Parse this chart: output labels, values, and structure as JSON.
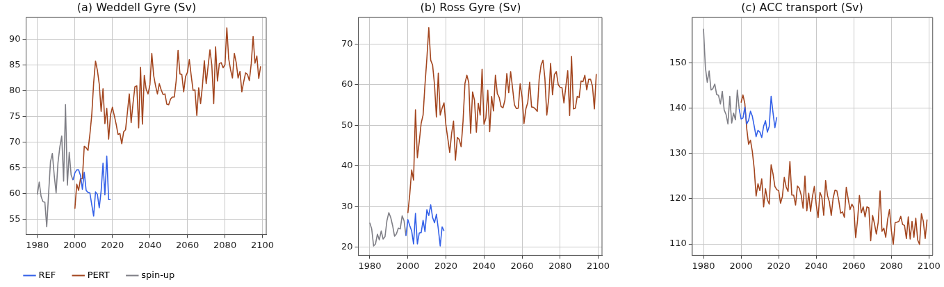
{
  "chart_data": [
    {
      "type": "line",
      "title": "(a) Weddell Gyre (Sv)",
      "xlim": [
        1974,
        2102
      ],
      "xticks": [
        1980,
        2000,
        2020,
        2040,
        2060,
        2080,
        2100
      ],
      "ylim": [
        52,
        94.3
      ],
      "yticks": [
        55,
        60,
        65,
        70,
        75,
        80,
        85,
        90
      ],
      "grid": true,
      "legend": "bottom left",
      "marker": "none",
      "line_style": "solid",
      "series": [
        {
          "name": "REF",
          "color": "#3461e8",
          "x": [
            1999,
            2000,
            2001,
            2002,
            2003,
            2004,
            2005,
            2006,
            2007,
            2008,
            2009,
            2010,
            2011,
            2012,
            2013,
            2014,
            2015,
            2016,
            2017,
            2018,
            2019
          ],
          "values": [
            62.6,
            64,
            64.6,
            64.6,
            63.5,
            60.8,
            64.1,
            60.6,
            60.2,
            60.1,
            57.8,
            55.6,
            60.3,
            59.8,
            57.2,
            60.5,
            65.9,
            59.7,
            67.3,
            58.8,
            58.8
          ]
        },
        {
          "name": "PERT",
          "color": "#a3461f",
          "x": [
            2000,
            2001,
            2002,
            2003,
            2004,
            2005,
            2006,
            2007,
            2008,
            2009,
            2010,
            2011,
            2012,
            2013,
            2014,
            2015,
            2016,
            2017,
            2018,
            2019,
            2020,
            2021,
            2022,
            2023,
            2024,
            2025,
            2026,
            2027,
            2028,
            2029,
            2030,
            2031,
            2032,
            2033,
            2034,
            2035,
            2036,
            2037,
            2038,
            2039,
            2040,
            2041,
            2042,
            2043,
            2044,
            2045,
            2046,
            2047,
            2048,
            2049,
            2050,
            2051,
            2052,
            2053,
            2054,
            2055,
            2056,
            2057,
            2058,
            2059,
            2060,
            2061,
            2062,
            2063,
            2064,
            2065,
            2066,
            2067,
            2068,
            2069,
            2070,
            2071,
            2072,
            2073,
            2074,
            2075,
            2076,
            2077,
            2078,
            2079,
            2080,
            2081,
            2082,
            2083,
            2084,
            2085,
            2086,
            2087,
            2088,
            2089,
            2090,
            2091,
            2092,
            2093,
            2094,
            2095,
            2096,
            2097,
            2098,
            2099
          ],
          "values": [
            57,
            61.8,
            60.6,
            62.9,
            62.9,
            69.2,
            68.9,
            68.4,
            71.5,
            75.3,
            81.5,
            85.8,
            84,
            81.3,
            76,
            80.4,
            73.6,
            76.6,
            70.6,
            75.3,
            76.8,
            75.2,
            73.5,
            71.5,
            71.7,
            69.7,
            72,
            72.4,
            75.8,
            79.4,
            73.8,
            77.6,
            80.8,
            81,
            72.8,
            84.6,
            73.5,
            83,
            80.3,
            79.4,
            81.2,
            87.3,
            83,
            81,
            79.4,
            81.4,
            80.2,
            79.3,
            79.4,
            77.4,
            77.3,
            78.4,
            78.8,
            78.8,
            82,
            87.9,
            83.3,
            83.2,
            79.8,
            82.8,
            83.6,
            86.1,
            83,
            80.1,
            80.2,
            75.2,
            80.6,
            77.5,
            81,
            85.9,
            81.4,
            84.8,
            88,
            85,
            77.5,
            88.6,
            81.9,
            85.3,
            85.5,
            84.5,
            85.1,
            92.3,
            86.2,
            84.1,
            82.5,
            87.3,
            85.5,
            82.5,
            83.8,
            79.8,
            81.8,
            83.5,
            83.2,
            82,
            85.3,
            90.6,
            85.4,
            86.8,
            82.4,
            84.8
          ]
        },
        {
          "name": "spin-up",
          "color": "#7f7f86",
          "x": [
            1980,
            1981,
            1982,
            1983,
            1984,
            1985,
            1986,
            1987,
            1988,
            1989,
            1990,
            1991,
            1992,
            1993,
            1994,
            1995,
            1996,
            1997,
            1998,
            1999
          ],
          "values": [
            59.8,
            62.2,
            59.4,
            58.4,
            58.3,
            53.5,
            60,
            66.2,
            67.8,
            63.5,
            60.1,
            66,
            69.1,
            71.2,
            62.4,
            77.3,
            61.6,
            68,
            63.6,
            62.6
          ]
        }
      ]
    },
    {
      "type": "line",
      "title": "(b) Ross Gyre (Sv)",
      "xlim": [
        1974,
        2102
      ],
      "xticks": [
        1980,
        2000,
        2020,
        2040,
        2060,
        2080,
        2100
      ],
      "ylim": [
        18,
        76.5
      ],
      "yticks": [
        20,
        30,
        40,
        50,
        60,
        70
      ],
      "grid": true,
      "marker": "none",
      "line_style": "solid",
      "series": [
        {
          "color": "#3461e8",
          "x": [
            1999,
            2000,
            2001,
            2002,
            2003,
            2004,
            2005,
            2006,
            2007,
            2008,
            2009,
            2010,
            2011,
            2012,
            2013,
            2014,
            2015,
            2016,
            2017,
            2018,
            2019
          ],
          "values": [
            22.8,
            26.8,
            25.3,
            24,
            20.8,
            28.3,
            20.8,
            23.5,
            23.6,
            26.6,
            23.8,
            29.2,
            27.8,
            30.4,
            27.3,
            26,
            28.1,
            24.5,
            20.3,
            25,
            24
          ]
        },
        {
          "color": "#a3461f",
          "x": [
            2000,
            2001,
            2002,
            2003,
            2004,
            2005,
            2006,
            2007,
            2008,
            2009,
            2010,
            2011,
            2012,
            2013,
            2014,
            2015,
            2016,
            2017,
            2018,
            2019,
            2020,
            2021,
            2022,
            2023,
            2024,
            2025,
            2026,
            2027,
            2028,
            2029,
            2030,
            2031,
            2032,
            2033,
            2034,
            2035,
            2036,
            2037,
            2038,
            2039,
            2040,
            2041,
            2042,
            2043,
            2044,
            2045,
            2046,
            2047,
            2048,
            2049,
            2050,
            2051,
            2052,
            2053,
            2054,
            2055,
            2056,
            2057,
            2058,
            2059,
            2060,
            2061,
            2062,
            2063,
            2064,
            2065,
            2066,
            2067,
            2068,
            2069,
            2070,
            2071,
            2072,
            2073,
            2074,
            2075,
            2076,
            2077,
            2078,
            2079,
            2080,
            2081,
            2082,
            2083,
            2084,
            2085,
            2086,
            2087,
            2088,
            2089,
            2090,
            2091,
            2092,
            2093,
            2094,
            2095,
            2096,
            2097,
            2098,
            2099
          ],
          "values": [
            28.4,
            33,
            39,
            36.5,
            53.8,
            42,
            46,
            50.5,
            52.5,
            60,
            66.5,
            74,
            66,
            64.8,
            60,
            52,
            62.8,
            52.5,
            54.2,
            55.5,
            50,
            46.7,
            43.3,
            48,
            51,
            41.4,
            47,
            46.5,
            44.7,
            51,
            60.3,
            62.3,
            60.5,
            48,
            58.2,
            56.2,
            48.3,
            55.4,
            52.5,
            63.8,
            50.2,
            51.8,
            58.6,
            48.4,
            57.1,
            53.5,
            62.3,
            57.8,
            56.8,
            54.6,
            54.3,
            56.2,
            62.7,
            58,
            63.2,
            59.2,
            55,
            54.1,
            54.2,
            60.2,
            57,
            50.4,
            54,
            55.6,
            60.6,
            54.5,
            54.4,
            54,
            53.4,
            61.4,
            64.8,
            66,
            61.5,
            52.5,
            56.5,
            65.2,
            57.5,
            62.5,
            63.2,
            60,
            59.3,
            59.2,
            55.5,
            59.5,
            63.4,
            52.4,
            66.9,
            54,
            54.2,
            57.1,
            56.8,
            60.9,
            60.7,
            62.3,
            58.7,
            61.3,
            61.3,
            59.6,
            54,
            62.6
          ]
        },
        {
          "color": "#7f7f86",
          "x": [
            1980,
            1981,
            1982,
            1983,
            1984,
            1985,
            1986,
            1987,
            1988,
            1989,
            1990,
            1991,
            1992,
            1993,
            1994,
            1995,
            1996,
            1997,
            1998,
            1999
          ],
          "values": [
            26,
            24.5,
            20.3,
            20.8,
            23.2,
            21.8,
            24,
            22,
            22.6,
            26.5,
            28.5,
            27.3,
            25.3,
            22.7,
            23.3,
            24.7,
            24.5,
            27.7,
            26.5,
            22.8
          ]
        }
      ]
    },
    {
      "type": "line",
      "title": "(c) ACC transport (Sv)",
      "xlim": [
        1974,
        2102
      ],
      "xticks": [
        1980,
        2000,
        2020,
        2040,
        2060,
        2080,
        2100
      ],
      "ylim": [
        107.5,
        160
      ],
      "yticks": [
        110,
        120,
        130,
        140,
        150
      ],
      "grid": true,
      "marker": "none",
      "line_style": "solid",
      "series": [
        {
          "color": "#3461e8",
          "x": [
            1999,
            2000,
            2001,
            2002,
            2003,
            2004,
            2005,
            2006,
            2007,
            2008,
            2009,
            2010,
            2011,
            2012,
            2013,
            2014,
            2015,
            2016,
            2017,
            2018,
            2019
          ],
          "values": [
            139.8,
            137.6,
            137.8,
            140.2,
            136.5,
            137.3,
            139.3,
            138.2,
            136,
            133.7,
            135.1,
            134.7,
            133.5,
            136,
            137.2,
            134.7,
            136,
            142.6,
            139,
            135.7,
            138
          ]
        },
        {
          "color": "#a3461f",
          "x": [
            2000,
            2001,
            2002,
            2003,
            2004,
            2005,
            2006,
            2007,
            2008,
            2009,
            2010,
            2011,
            2012,
            2013,
            2014,
            2015,
            2016,
            2017,
            2018,
            2019,
            2020,
            2021,
            2022,
            2023,
            2024,
            2025,
            2026,
            2027,
            2028,
            2029,
            2030,
            2031,
            2032,
            2033,
            2034,
            2035,
            2036,
            2037,
            2038,
            2039,
            2040,
            2041,
            2042,
            2043,
            2044,
            2045,
            2046,
            2047,
            2048,
            2049,
            2050,
            2051,
            2052,
            2053,
            2054,
            2055,
            2056,
            2057,
            2058,
            2059,
            2060,
            2061,
            2062,
            2063,
            2064,
            2065,
            2066,
            2067,
            2068,
            2069,
            2070,
            2071,
            2072,
            2073,
            2074,
            2075,
            2076,
            2077,
            2078,
            2079,
            2080,
            2081,
            2082,
            2083,
            2084,
            2085,
            2086,
            2087,
            2088,
            2089,
            2090,
            2091,
            2092,
            2093,
            2094,
            2095,
            2096,
            2097,
            2098,
            2099
          ],
          "values": [
            141.2,
            142.9,
            141,
            135.5,
            132,
            132.9,
            130.4,
            126.6,
            120.6,
            123.3,
            121.8,
            124.4,
            118.2,
            122.2,
            119.8,
            118.8,
            127.5,
            125.5,
            122.7,
            122,
            121.8,
            119,
            120.5,
            124.7,
            122.6,
            121.6,
            128.2,
            120.8,
            120.8,
            118.6,
            122.8,
            122.3,
            120.8,
            117.9,
            125,
            117.3,
            121.2,
            117.2,
            120.5,
            122.7,
            118.7,
            115.8,
            121.4,
            120.3,
            116.3,
            124,
            120.7,
            119.3,
            116.3,
            120.1,
            121.9,
            121.7,
            119.6,
            116.8,
            117.1,
            115.9,
            122.5,
            120,
            117.6,
            118.8,
            118,
            111.4,
            115.3,
            120.7,
            116.9,
            118.2,
            116,
            118.2,
            118,
            110.7,
            116.3,
            114.5,
            112.2,
            114.8,
            121.7,
            112.8,
            113.5,
            111.5,
            115.4,
            117.6,
            113,
            109.9,
            114.7,
            114.8,
            115,
            116.1,
            114.3,
            114.1,
            111.2,
            116,
            111.1,
            115,
            111.5,
            115.7,
            110.9,
            109.9,
            116.7,
            115,
            111.2,
            115.4
          ]
        },
        {
          "color": "#7f7f86",
          "x": [
            1980,
            1981,
            1982,
            1983,
            1984,
            1985,
            1986,
            1987,
            1988,
            1989,
            1990,
            1991,
            1992,
            1993,
            1994,
            1995,
            1996,
            1997,
            1998,
            1999
          ],
          "values": [
            157.5,
            149,
            145.7,
            148.2,
            144,
            144.3,
            145.3,
            143,
            142.8,
            140.9,
            143.7,
            139.6,
            138.6,
            136.5,
            142.6,
            136.7,
            138.9,
            137.4,
            144,
            139.8
          ]
        }
      ]
    }
  ]
}
